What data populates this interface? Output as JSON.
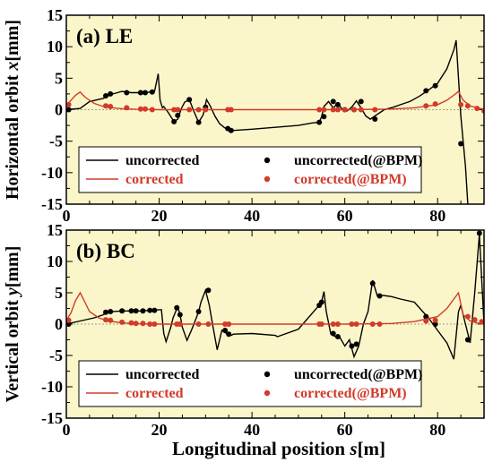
{
  "figure": {
    "xlabel_text": "Longitudinal position",
    "xlabel_var": "s",
    "xlabel_unit": "[m]",
    "background_color": "#fbf6c9",
    "uncorrected_color": "#000000",
    "corrected_color": "#d23a2a"
  },
  "chart_data": [
    {
      "type": "line",
      "title": "(a) LE",
      "ylabel_text": "Horizontal orbit",
      "ylabel_var": "x",
      "ylabel_unit": "[mm]",
      "xlim": [
        0,
        90
      ],
      "ylim": [
        -15,
        15
      ],
      "xticks": [
        0,
        20,
        40,
        60,
        80
      ],
      "yticks": [
        -15,
        -10,
        -5,
        0,
        5,
        10,
        15
      ],
      "legend": [
        "uncorrected",
        "uncorrected(@BPM)",
        "corrected",
        "corrected(@BPM)"
      ],
      "legend_position": "bottom",
      "series": [
        {
          "name": "uncorrected",
          "style": "line",
          "x": [
            0,
            3,
            5,
            8,
            9,
            10,
            11,
            12,
            14,
            16,
            17,
            18,
            19,
            19.8,
            20.2,
            20.7,
            21,
            22,
            23.2,
            24,
            24.8,
            25.5,
            26.5,
            27.5,
            28.5,
            29.5,
            30.2,
            31,
            32,
            33,
            34,
            35,
            36,
            40,
            45,
            50,
            53,
            54.5,
            55,
            55.5,
            56.5,
            57.5,
            58.5,
            59.5,
            60.5,
            61.5,
            62.5,
            63.5,
            64.5,
            65.5,
            66.5,
            67.5,
            68.5,
            69.5,
            70.5,
            72,
            74,
            76,
            78,
            80,
            82,
            83.5,
            84,
            84.5,
            85,
            86,
            86.5
          ],
          "y": [
            0,
            0.2,
            1.3,
            1.8,
            2.2,
            2.5,
            2.7,
            2.9,
            2.7,
            2.7,
            2.7,
            2.8,
            2.9,
            5.7,
            1.5,
            0.3,
            0.5,
            -0.5,
            -1.9,
            -1.5,
            0.2,
            1.2,
            1.6,
            -0.3,
            -2.0,
            -0.8,
            1.6,
            0.6,
            -1.0,
            -2.2,
            -2.8,
            -3.3,
            -3.3,
            -3.1,
            -2.8,
            -2.5,
            -2.1,
            -2.0,
            -1.1,
            0.5,
            1.3,
            0.3,
            1.0,
            0.0,
            -0.2,
            0.4,
            1.4,
            0.3,
            -1.0,
            -1.5,
            -1.0,
            -0.5,
            0.0,
            0.2,
            0.4,
            0.8,
            1.3,
            2.1,
            3.1,
            4.2,
            6.5,
            9.5,
            11.0,
            5.0,
            -1.0,
            -9.0,
            -15.0
          ]
        },
        {
          "name": "uncorrected(@BPM)",
          "style": "points",
          "x": [
            0.5,
            8.5,
            9.5,
            13,
            16,
            17,
            18.5,
            23.2,
            24,
            26.5,
            28.5,
            30,
            34.8,
            35.5,
            54.5,
            55.5,
            57.5,
            58.5,
            60,
            62,
            63.5,
            66.5,
            77.5,
            79.5,
            85
          ],
          "y": [
            0,
            2.2,
            2.5,
            2.7,
            2.7,
            2.7,
            2.8,
            -1.9,
            -0.9,
            1.6,
            -2.0,
            0.4,
            -3.0,
            -3.3,
            -2.0,
            -1.1,
            1.3,
            0.8,
            0.0,
            0.0,
            1.3,
            -1.5,
            3.0,
            3.8,
            -5.4
          ]
        },
        {
          "name": "corrected",
          "style": "line",
          "x": [
            0,
            1,
            2,
            3,
            4,
            6,
            8,
            10,
            12,
            15,
            20,
            30,
            40,
            50,
            60,
            70,
            75,
            80,
            82,
            83.5,
            84.5,
            85.5,
            87,
            89,
            90
          ],
          "y": [
            0.6,
            1.5,
            2.3,
            2.8,
            2.0,
            1.0,
            0.5,
            0.3,
            0.15,
            0.05,
            0.0,
            0.0,
            0.0,
            0.0,
            0.0,
            0.1,
            0.3,
            0.8,
            1.5,
            2.3,
            2.9,
            1.5,
            0.6,
            0.2,
            0.1
          ]
        },
        {
          "name": "corrected(@BPM)",
          "style": "points",
          "x": [
            0.5,
            8.5,
            9.5,
            13,
            16,
            17,
            18.5,
            23.2,
            24,
            26.5,
            28.5,
            30,
            34.8,
            35.5,
            54.5,
            55.5,
            57.5,
            58.5,
            60,
            62,
            63.5,
            66.5,
            77.5,
            79.5,
            85,
            86.5,
            88.5,
            90
          ],
          "y": [
            0.8,
            0.6,
            0.5,
            0.3,
            0.1,
            0.1,
            0.0,
            0.0,
            0.0,
            0.0,
            0.0,
            0.0,
            0.0,
            0.0,
            0.0,
            0.0,
            0.0,
            0.0,
            0.0,
            0.0,
            0.0,
            0.0,
            0.6,
            0.9,
            0.8,
            0.6,
            0.2,
            -0.2
          ]
        }
      ]
    },
    {
      "type": "line",
      "title": "(b) BC",
      "ylabel_text": "Vertical orbit",
      "ylabel_var": "y",
      "ylabel_unit": "[mm]",
      "xlim": [
        0,
        90
      ],
      "ylim": [
        -15,
        15
      ],
      "xticks": [
        0,
        20,
        40,
        60,
        80
      ],
      "yticks": [
        -15,
        -10,
        -5,
        0,
        5,
        10,
        15
      ],
      "legend": [
        "uncorrected",
        "uncorrected(@BPM)",
        "corrected",
        "corrected(@BPM)"
      ],
      "legend_position": "bottom",
      "series": [
        {
          "name": "uncorrected",
          "style": "line",
          "x": [
            0,
            3,
            6,
            8,
            9,
            10,
            12,
            14,
            16,
            18,
            20,
            20.5,
            21,
            21.5,
            22.5,
            23,
            24,
            24.5,
            25,
            26,
            27,
            28,
            28.5,
            29,
            30,
            30.8,
            31.5,
            32.5,
            33.5,
            34.5,
            35.5,
            36,
            40,
            45,
            45.5,
            50,
            54,
            55,
            55.5,
            56,
            57,
            57.5,
            58,
            59,
            60,
            61,
            62,
            63,
            64,
            65,
            66,
            67,
            68,
            69,
            70,
            72,
            75,
            78,
            80,
            82,
            83.5,
            84.5,
            85,
            86,
            87,
            88,
            89,
            90,
            91
          ],
          "y": [
            0,
            0.5,
            1.0,
            1.5,
            1.9,
            2.0,
            2.1,
            2.1,
            2.1,
            2.2,
            2.3,
            2.3,
            -1.5,
            -2.8,
            -0.5,
            1.0,
            2.8,
            1.5,
            -0.5,
            -2.6,
            -0.9,
            1.0,
            2.0,
            3.5,
            5.4,
            3.0,
            0.0,
            -4.1,
            -1.0,
            -1.5,
            -1.8,
            -1.6,
            -1.5,
            -1.8,
            -2.0,
            -0.8,
            2.6,
            3.6,
            5.2,
            2.0,
            -1.6,
            -1.8,
            -2.0,
            -2.2,
            -3.5,
            -2.5,
            -5.2,
            -3.5,
            0.0,
            2.0,
            7.0,
            4.5,
            4.6,
            4.5,
            4.4,
            4.0,
            3.5,
            1.0,
            -1.0,
            -3.0,
            -5.6,
            2.0,
            3.0,
            0.0,
            -3.0,
            5.0,
            14.3,
            0.0,
            -1.8
          ]
        },
        {
          "name": "uncorrected(@BPM)",
          "style": "points",
          "x": [
            0.5,
            8.5,
            9.5,
            12,
            14,
            15,
            16.5,
            18,
            19,
            23.8,
            24.5,
            28.5,
            30.6,
            34.2,
            35,
            54.5,
            55,
            57.5,
            58.5,
            61.5,
            62.5,
            66,
            67.5,
            77.5,
            79.5,
            86.5,
            89,
            90.5
          ],
          "y": [
            0,
            1.9,
            2.0,
            2.1,
            2.1,
            2.1,
            2.1,
            2.2,
            2.2,
            2.6,
            1.5,
            2.0,
            5.4,
            -1.0,
            -1.6,
            3.0,
            3.5,
            -1.5,
            -2.0,
            -3.5,
            -3.2,
            6.5,
            4.5,
            1.2,
            0.0,
            -2.5,
            14.5,
            -1.8
          ]
        },
        {
          "name": "corrected",
          "style": "line",
          "x": [
            0,
            1,
            2,
            3,
            4,
            5,
            7,
            9,
            12,
            15,
            20,
            30,
            40,
            50,
            60,
            70,
            75,
            80,
            82,
            83.5,
            84.5,
            85.5,
            87,
            89,
            90
          ],
          "y": [
            0.6,
            1.8,
            3.8,
            5.0,
            3.5,
            2.0,
            1.0,
            0.5,
            0.2,
            0.05,
            0.0,
            0.0,
            0.0,
            0.0,
            0.0,
            0.1,
            0.4,
            1.2,
            2.5,
            4.0,
            5.0,
            1.5,
            0.5,
            0.1,
            0.0
          ]
        },
        {
          "name": "corrected(@BPM)",
          "style": "points",
          "x": [
            0.5,
            8.5,
            9.5,
            12,
            14,
            15,
            16.5,
            18,
            19,
            23.8,
            24.5,
            28.5,
            30.6,
            34.2,
            35,
            54.5,
            55,
            57.5,
            58.5,
            61.5,
            62.5,
            66,
            67.5,
            77.5,
            79.5,
            86.5,
            88,
            89.5,
            90.5
          ],
          "y": [
            0.6,
            0.7,
            0.6,
            0.3,
            0.2,
            0.1,
            0.1,
            0.0,
            0.0,
            0.0,
            0.0,
            0.0,
            0.0,
            0.0,
            0.0,
            0.0,
            0.0,
            0.0,
            0.0,
            0.0,
            0.0,
            0.0,
            0.0,
            0.5,
            0.6,
            1.2,
            0.7,
            0.4,
            0.0
          ]
        }
      ]
    }
  ]
}
